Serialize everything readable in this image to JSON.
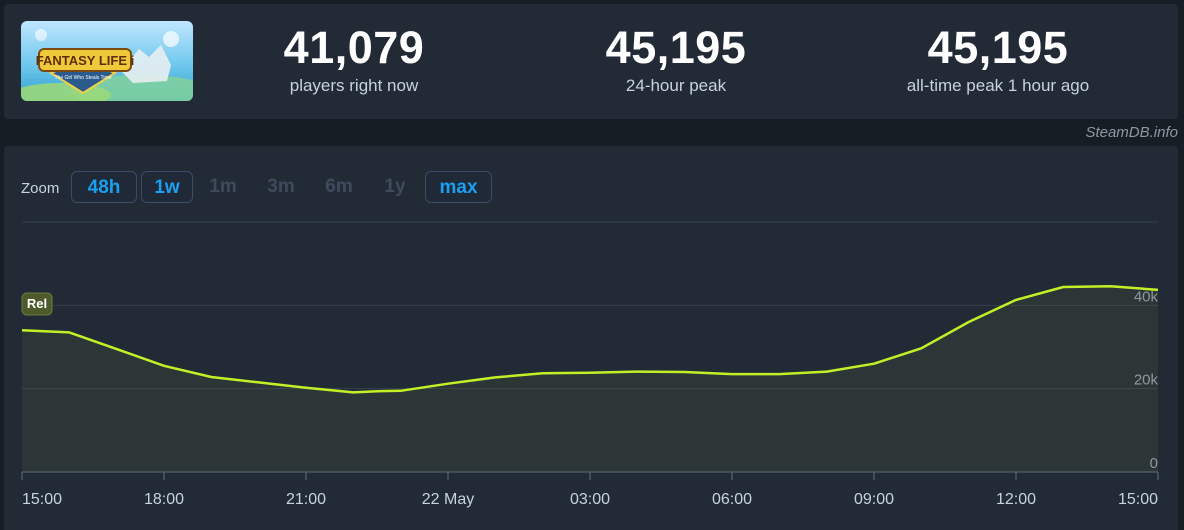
{
  "stats": [
    {
      "value": "41,079",
      "label": "players right now"
    },
    {
      "value": "45,195",
      "label": "24-hour peak"
    },
    {
      "value": "45,195",
      "label": "all-time peak 1 hour ago"
    }
  ],
  "game": {
    "logo_text": "FANTASY LIFE i",
    "logo_subtext": "The Girl Who Steals Time"
  },
  "credit": "SteamDB.info",
  "zoom": {
    "label": "Zoom",
    "options": [
      {
        "label": "48h",
        "active": true
      },
      {
        "label": "1w",
        "active": true
      },
      {
        "label": "1m",
        "active": false
      },
      {
        "label": "3m",
        "active": false
      },
      {
        "label": "6m",
        "active": false
      },
      {
        "label": "1y",
        "active": false
      },
      {
        "label": "max",
        "active": true
      }
    ]
  },
  "colors": {
    "line": "#c2f027",
    "accent": "#1ba0f0",
    "badge": "#4d5a2b"
  },
  "chart_data": {
    "type": "area",
    "badge": "Rel",
    "x_labels": [
      "15:00",
      "18:00",
      "21:00",
      "22 May",
      "03:00",
      "06:00",
      "09:00",
      "12:00",
      "15:00"
    ],
    "y_ticks": [
      "0",
      "20k",
      "40k"
    ],
    "ylim": [
      0,
      60000
    ],
    "x_hours": [
      0,
      1,
      2,
      3,
      4,
      5,
      6,
      7,
      7.5,
      8,
      9,
      10,
      11,
      12,
      13,
      14,
      15,
      16,
      17,
      18,
      19,
      20,
      21,
      22,
      23,
      24
    ],
    "values": [
      34000,
      33500,
      29500,
      25500,
      22800,
      21500,
      20200,
      19100,
      19400,
      19500,
      21200,
      22700,
      23700,
      23800,
      24100,
      24000,
      23500,
      23500,
      24100,
      26000,
      29700,
      36000,
      41300,
      44400,
      44600,
      43700
    ]
  }
}
